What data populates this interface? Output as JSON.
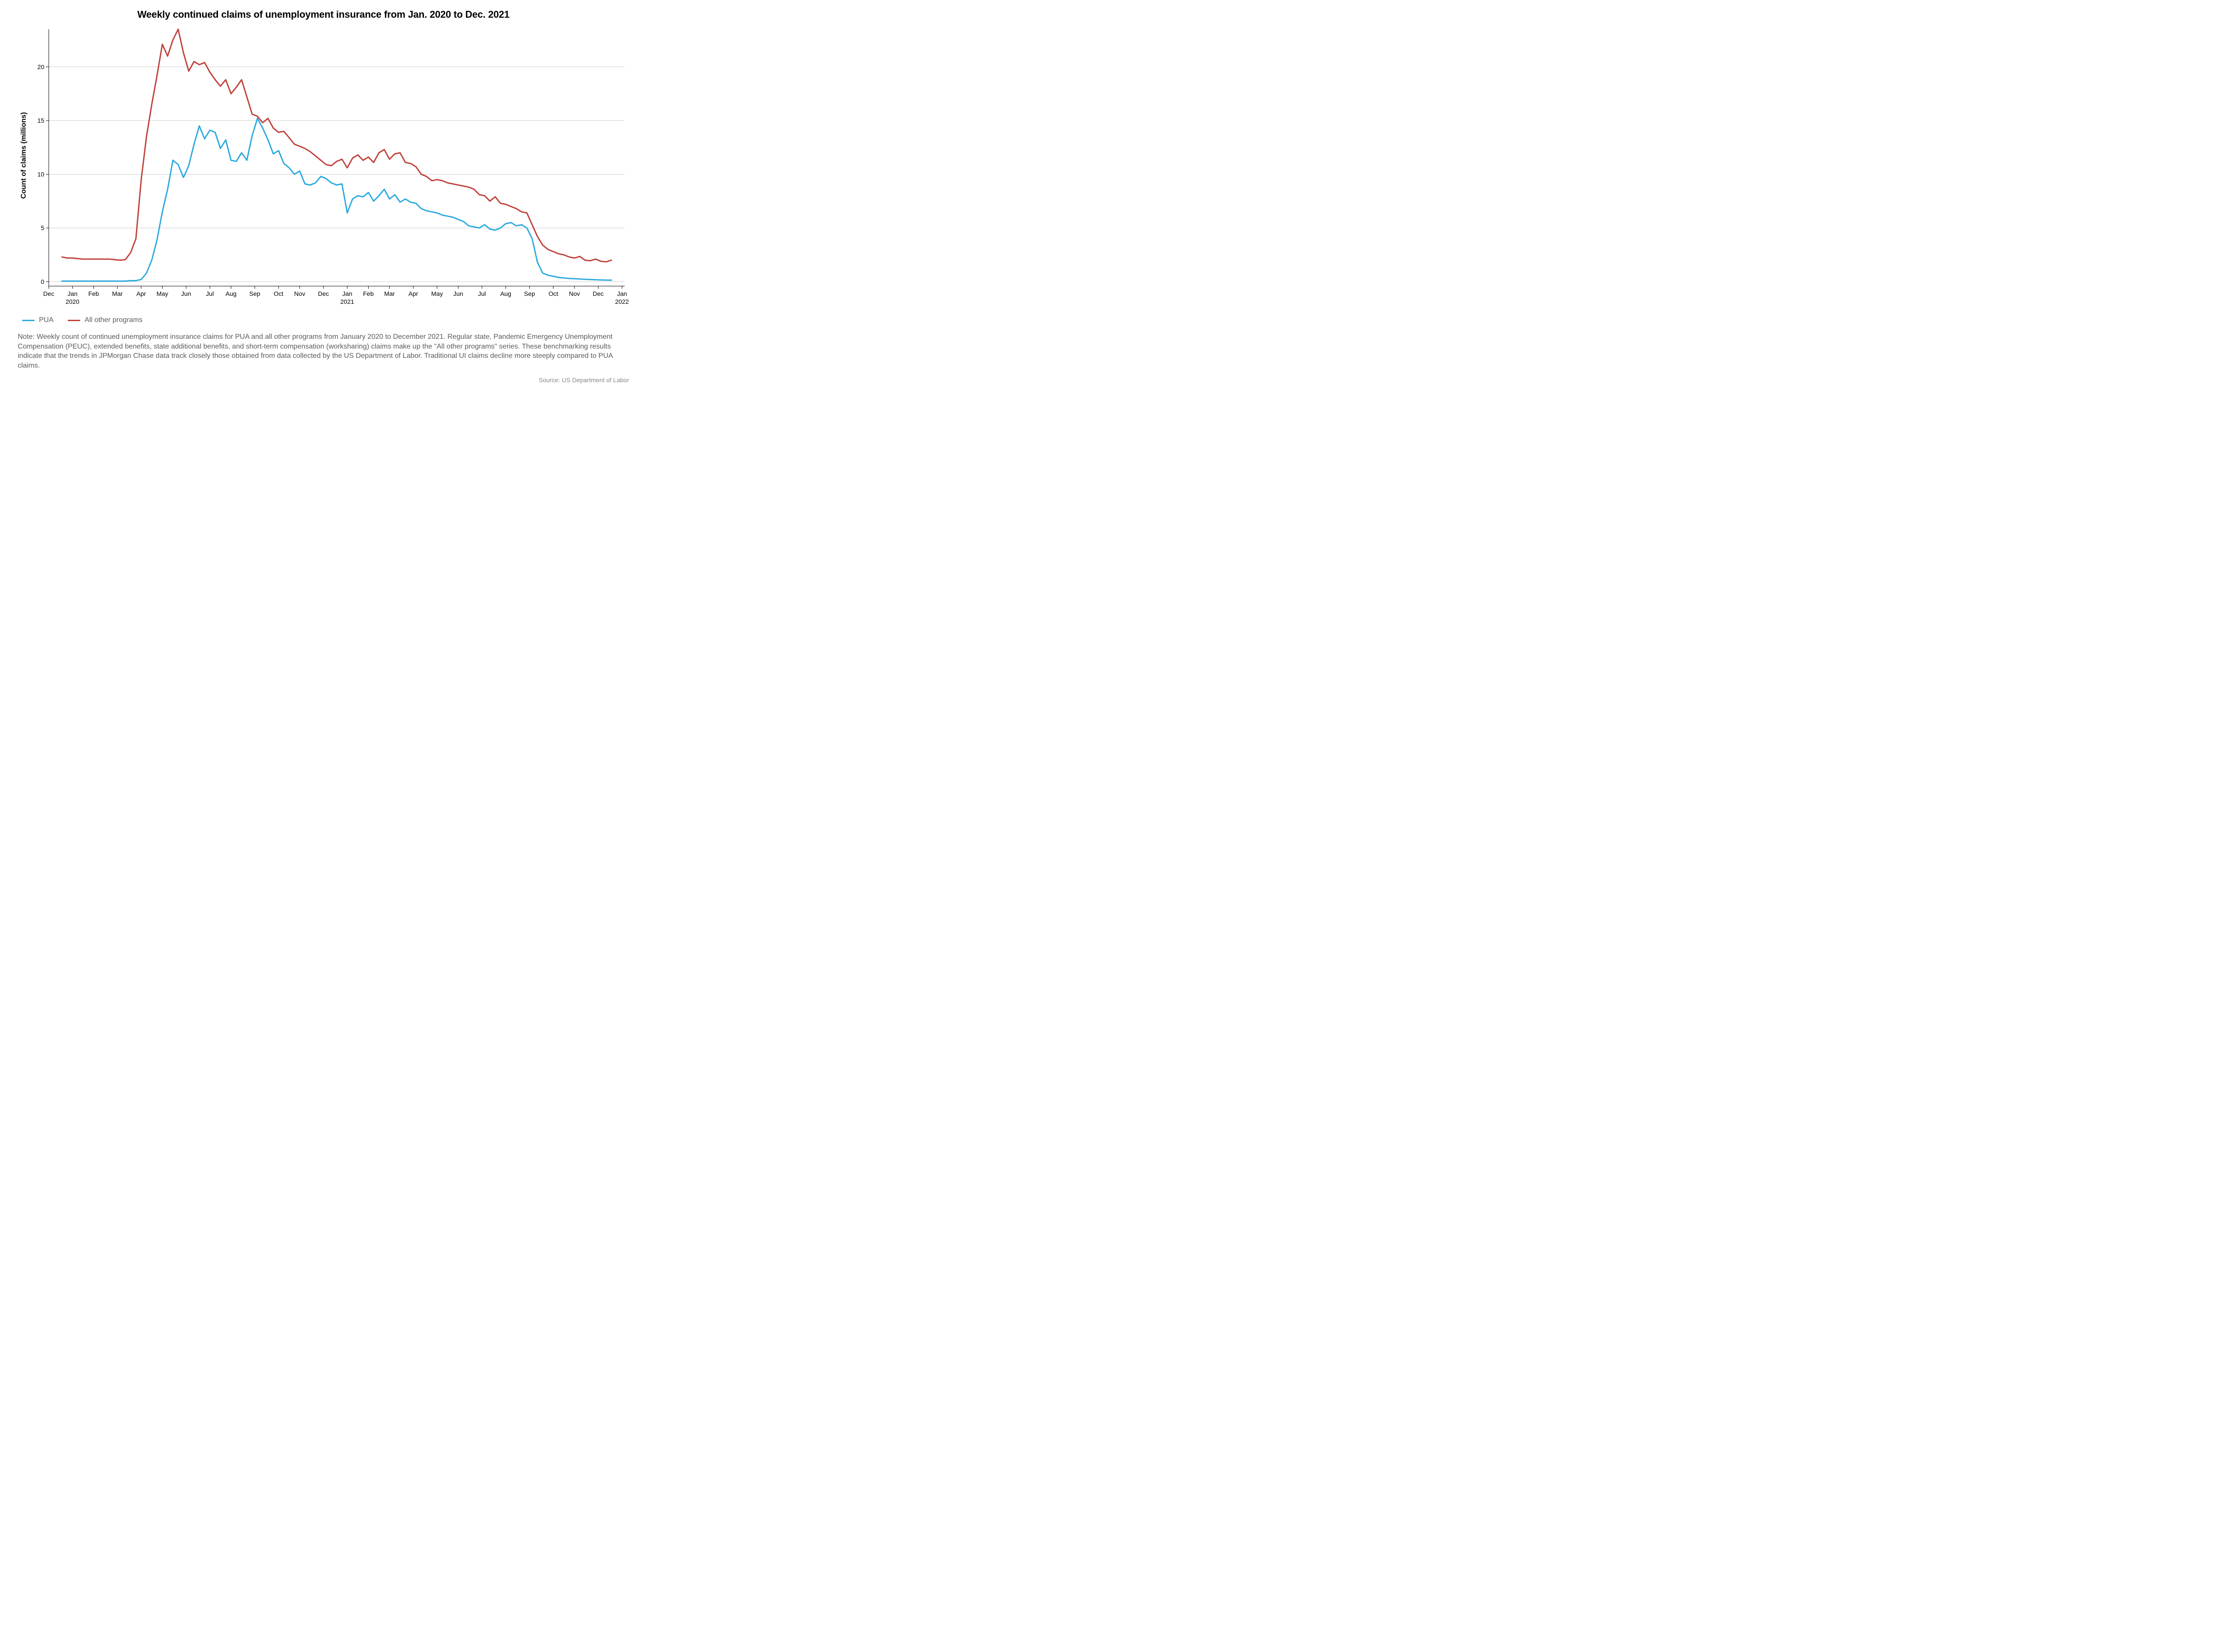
{
  "title": "Weekly continued claims of unemployment insurance from Jan. 2020 to Dec. 2021",
  "note": "Note: Weekly count of continued unemployment insurance claims for PUA and all other programs from January 2020 to December 2021. Regular state, Pandemic Emergency Unemployment Compensation (PEUC), extended benefits, state additional benefits, and short-term compensation (worksharing) claims make up the \"All other programs\" series. These benchmarking results indicate that the trends in JPMorgan Chase data track closely those obtained from data collected by the US Department of Labor. Traditional UI claims decline more steeply compared to PUA claims.",
  "source": "Source: US Department of Labor",
  "chart": {
    "type": "line",
    "background_color": "#ffffff",
    "grid_color": "#cccccc",
    "axis_color": "#000000",
    "tick_color": "#000000",
    "axis_label_color": "#000000",
    "tick_fontsize": 14,
    "title_fontsize": 22,
    "y_axis": {
      "label": "Count of claims (millions)",
      "label_fontsize": 16,
      "min": 0,
      "max": 23.5,
      "ticks": [
        0,
        5,
        10,
        15,
        20
      ],
      "grid": true
    },
    "x_axis": {
      "n_points": 105,
      "min_index": 0,
      "max_index": 104,
      "domain_pad_left": 2.5,
      "domain_pad_right": 2.5,
      "major_ticks": [
        {
          "idx": -2.5,
          "label": "Dec",
          "sub": ""
        },
        {
          "idx": 2,
          "label": "Jan",
          "sub": "2020"
        },
        {
          "idx": 6,
          "label": "Feb",
          "sub": ""
        },
        {
          "idx": 10.5,
          "label": "Mar",
          "sub": ""
        },
        {
          "idx": 15,
          "label": "Apr",
          "sub": ""
        },
        {
          "idx": 19,
          "label": "May",
          "sub": ""
        },
        {
          "idx": 23.5,
          "label": "Jun",
          "sub": ""
        },
        {
          "idx": 28,
          "label": "Jul",
          "sub": ""
        },
        {
          "idx": 32,
          "label": "Aug",
          "sub": ""
        },
        {
          "idx": 36.5,
          "label": "Sep",
          "sub": ""
        },
        {
          "idx": 41,
          "label": "Oct",
          "sub": ""
        },
        {
          "idx": 45,
          "label": "Nov",
          "sub": ""
        },
        {
          "idx": 49.5,
          "label": "Dec",
          "sub": ""
        },
        {
          "idx": 54,
          "label": "Jan",
          "sub": "2021"
        },
        {
          "idx": 58,
          "label": "Feb",
          "sub": ""
        },
        {
          "idx": 62,
          "label": "Mar",
          "sub": ""
        },
        {
          "idx": 66.5,
          "label": "Apr",
          "sub": ""
        },
        {
          "idx": 71,
          "label": "May",
          "sub": ""
        },
        {
          "idx": 75,
          "label": "Jun",
          "sub": ""
        },
        {
          "idx": 79.5,
          "label": "Jul",
          "sub": ""
        },
        {
          "idx": 84,
          "label": "Aug",
          "sub": ""
        },
        {
          "idx": 88.5,
          "label": "Sep",
          "sub": ""
        },
        {
          "idx": 93,
          "label": "Oct",
          "sub": ""
        },
        {
          "idx": 97,
          "label": "Nov",
          "sub": ""
        },
        {
          "idx": 101.5,
          "label": "Dec",
          "sub": ""
        },
        {
          "idx": 106,
          "label": "Jan",
          "sub": "2022"
        }
      ]
    },
    "series": [
      {
        "name": "PUA",
        "color": "#2ba9de",
        "line_width": 3,
        "values": [
          0.05,
          0.05,
          0.05,
          0.05,
          0.05,
          0.05,
          0.05,
          0.05,
          0.05,
          0.05,
          0.05,
          0.05,
          0.05,
          0.1,
          0.1,
          0.2,
          0.8,
          2.0,
          3.9,
          6.5,
          8.6,
          11.3,
          10.9,
          9.7,
          10.8,
          12.8,
          14.5,
          13.3,
          14.1,
          13.9,
          12.4,
          13.2,
          11.3,
          11.2,
          12.0,
          11.3,
          13.6,
          15.2,
          14.3,
          13.2,
          11.9,
          12.2,
          11.0,
          10.6,
          10.0,
          10.3,
          9.1,
          9.0,
          9.2,
          9.8,
          9.6,
          9.2,
          9.0,
          9.1,
          6.4,
          7.7,
          8.0,
          7.9,
          8.3,
          7.5,
          8.0,
          8.6,
          7.7,
          8.1,
          7.4,
          7.7,
          7.4,
          7.3,
          6.8,
          6.6,
          6.5,
          6.4,
          6.2,
          6.1,
          6.0,
          5.8,
          5.6,
          5.2,
          5.1,
          5.0,
          5.3,
          4.9,
          4.8,
          5.0,
          5.4,
          5.5,
          5.2,
          5.3,
          5.0,
          4.0,
          1.8,
          0.8,
          0.6,
          0.5,
          0.4,
          0.35,
          0.3,
          0.28,
          0.25,
          0.22,
          0.2,
          0.18,
          0.16,
          0.15,
          0.14
        ]
      },
      {
        "name": "All other programs",
        "color": "#c0403a",
        "line_width": 3,
        "values": [
          2.3,
          2.2,
          2.2,
          2.15,
          2.1,
          2.1,
          2.1,
          2.1,
          2.1,
          2.1,
          2.05,
          2.0,
          2.05,
          2.7,
          4.0,
          9.5,
          13.5,
          16.5,
          19.2,
          22.1,
          21.0,
          22.5,
          23.5,
          21.3,
          19.6,
          20.5,
          20.2,
          20.4,
          19.5,
          18.8,
          18.2,
          18.8,
          17.5,
          18.1,
          18.8,
          17.2,
          15.6,
          15.4,
          14.8,
          15.2,
          14.3,
          13.9,
          14.0,
          13.4,
          12.8,
          12.6,
          12.4,
          12.1,
          11.7,
          11.3,
          10.9,
          10.8,
          11.2,
          11.4,
          10.6,
          11.5,
          11.8,
          11.3,
          11.6,
          11.1,
          12.0,
          12.3,
          11.4,
          11.9,
          12.0,
          11.1,
          11.0,
          10.7,
          10.0,
          9.8,
          9.4,
          9.5,
          9.4,
          9.2,
          9.1,
          9.0,
          8.9,
          8.8,
          8.6,
          8.1,
          8.0,
          7.5,
          7.9,
          7.3,
          7.2,
          7.0,
          6.8,
          6.5,
          6.4,
          5.3,
          4.2,
          3.4,
          3.0,
          2.8,
          2.6,
          2.5,
          2.3,
          2.2,
          2.35,
          2.0,
          1.95,
          2.1,
          1.9,
          1.85,
          2.0
        ]
      }
    ],
    "legend": {
      "items": [
        {
          "label": "PUA",
          "color": "#2ba9de"
        },
        {
          "label": "All other programs",
          "color": "#c0403a"
        }
      ]
    }
  }
}
